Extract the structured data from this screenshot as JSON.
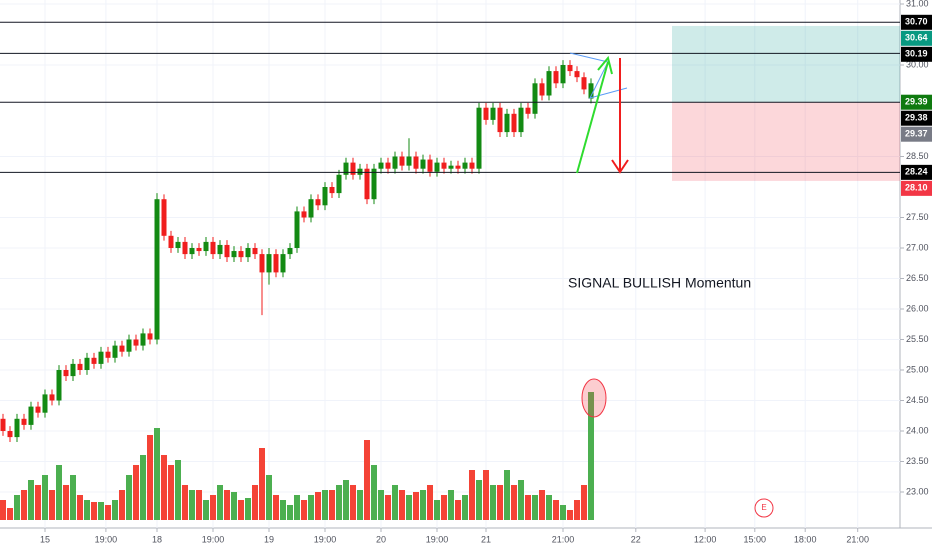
{
  "chart_data": {
    "type": "candlestick",
    "annotation": "SIGNAL BULLISH Momentun",
    "event_marker": "E",
    "up_color": "#138a13",
    "down_color": "#f01e1e",
    "vol_up_color": "#4caf50",
    "vol_down_color": "#f44336",
    "open": [
      24.2,
      24.0,
      23.9,
      24.2,
      24.1,
      24.4,
      24.3,
      24.6,
      24.5,
      25.0,
      24.9,
      25.1,
      25.0,
      25.2,
      25.1,
      25.3,
      25.2,
      25.4,
      25.3,
      25.5,
      25.4,
      25.6,
      25.5,
      27.8,
      27.2,
      27.0,
      27.1,
      26.9,
      27.0,
      26.95,
      27.1,
      26.9,
      27.05,
      26.85,
      26.95,
      26.85,
      27.0,
      26.9,
      26.6,
      26.9,
      26.6,
      26.9,
      27.0,
      27.6,
      27.5,
      27.8,
      27.7,
      28.0,
      27.9,
      28.2,
      28.4,
      28.2,
      28.3,
      27.8,
      28.3,
      28.4,
      28.3,
      28.5,
      28.35,
      28.5,
      28.3,
      28.45,
      28.25,
      28.4,
      28.3,
      28.35,
      28.3,
      28.4,
      28.3,
      29.3,
      29.1,
      29.3,
      28.9,
      29.2,
      28.9,
      29.3,
      29.2,
      29.7,
      29.5,
      29.9,
      29.7,
      30.0,
      29.9,
      29.8,
      29.45
    ],
    "high": [
      24.28,
      24.08,
      24.28,
      24.28,
      24.48,
      24.48,
      24.68,
      24.68,
      25.08,
      25.08,
      25.18,
      25.18,
      25.28,
      25.28,
      25.38,
      25.38,
      25.48,
      25.48,
      25.58,
      25.58,
      25.68,
      25.68,
      27.9,
      27.88,
      27.28,
      27.18,
      27.18,
      27.08,
      27.08,
      27.18,
      27.18,
      27.13,
      27.13,
      27.03,
      27.03,
      27.08,
      27.08,
      26.98,
      27.0,
      26.98,
      26.98,
      27.08,
      27.68,
      27.68,
      27.88,
      27.88,
      28.08,
      28.08,
      28.28,
      28.48,
      28.48,
      28.38,
      28.38,
      28.38,
      28.48,
      28.48,
      28.58,
      28.58,
      28.8,
      28.58,
      28.53,
      28.53,
      28.48,
      28.48,
      28.43,
      28.43,
      28.48,
      28.48,
      29.38,
      29.38,
      29.38,
      29.38,
      29.28,
      29.28,
      29.38,
      29.38,
      29.78,
      29.78,
      29.98,
      29.98,
      30.08,
      30.08,
      29.98,
      29.88,
      29.78
    ],
    "low": [
      23.92,
      23.82,
      23.82,
      24.02,
      24.02,
      24.22,
      24.22,
      24.42,
      24.42,
      24.82,
      24.82,
      24.92,
      24.92,
      25.02,
      25.02,
      25.12,
      25.12,
      25.22,
      25.22,
      25.32,
      25.32,
      25.42,
      25.42,
      27.12,
      26.92,
      26.92,
      26.82,
      26.82,
      26.87,
      26.87,
      26.82,
      26.82,
      26.77,
      26.77,
      26.77,
      26.77,
      26.82,
      25.9,
      26.4,
      26.52,
      26.52,
      26.82,
      26.92,
      27.42,
      27.42,
      27.62,
      27.62,
      27.82,
      27.82,
      28.12,
      28.12,
      28.12,
      27.72,
      27.72,
      28.22,
      28.22,
      28.22,
      28.27,
      28.27,
      28.22,
      28.22,
      28.17,
      28.17,
      28.22,
      28.22,
      28.22,
      28.22,
      28.22,
      28.22,
      29.02,
      29.02,
      28.82,
      28.82,
      28.82,
      28.82,
      29.12,
      29.12,
      29.42,
      29.42,
      29.62,
      29.62,
      29.82,
      29.72,
      29.52,
      29.37
    ],
    "close": [
      24.0,
      23.9,
      24.2,
      24.1,
      24.4,
      24.3,
      24.6,
      24.5,
      25.0,
      24.9,
      25.1,
      25.0,
      25.2,
      25.1,
      25.3,
      25.2,
      25.4,
      25.3,
      25.5,
      25.4,
      25.6,
      25.5,
      27.8,
      27.2,
      27.0,
      27.1,
      26.9,
      27.0,
      26.95,
      27.1,
      26.9,
      27.05,
      26.85,
      26.95,
      26.85,
      27.0,
      26.9,
      26.6,
      26.9,
      26.6,
      26.9,
      27.0,
      27.6,
      27.5,
      27.8,
      27.7,
      28.0,
      27.9,
      28.2,
      28.4,
      28.2,
      28.3,
      27.8,
      28.3,
      28.4,
      28.3,
      28.5,
      28.35,
      28.5,
      28.3,
      28.45,
      28.25,
      28.4,
      28.3,
      28.35,
      28.3,
      28.4,
      28.3,
      29.3,
      29.1,
      29.3,
      28.9,
      29.2,
      28.9,
      29.3,
      29.2,
      29.7,
      29.5,
      29.9,
      29.7,
      30.0,
      29.9,
      29.8,
      29.6,
      29.7
    ],
    "volume": [
      20,
      12,
      25,
      30,
      40,
      35,
      45,
      30,
      55,
      35,
      45,
      25,
      20,
      18,
      18,
      15,
      20,
      30,
      45,
      55,
      65,
      85,
      92,
      65,
      55,
      60,
      35,
      30,
      30,
      20,
      25,
      35,
      30,
      28,
      20,
      22,
      35,
      72,
      45,
      25,
      20,
      15,
      25,
      20,
      25,
      28,
      30,
      30,
      35,
      40,
      35,
      30,
      80,
      55,
      30,
      25,
      35,
      30,
      25,
      28,
      30,
      35,
      20,
      25,
      30,
      20,
      25,
      50,
      40,
      50,
      35,
      35,
      50,
      35,
      40,
      25,
      25,
      30,
      25,
      20,
      15,
      10,
      20,
      35,
      128
    ],
    "xlim": [
      0,
      128
    ],
    "xticks": [
      {
        "value": 6,
        "label": "15"
      },
      {
        "value": 14.7,
        "label": "19:00"
      },
      {
        "value": 22,
        "label": "18"
      },
      {
        "value": 30,
        "label": "19:00"
      },
      {
        "value": 38,
        "label": "19"
      },
      {
        "value": 46,
        "label": "19:00"
      },
      {
        "value": 54,
        "label": "20"
      },
      {
        "value": 62,
        "label": "19:00"
      },
      {
        "value": 69,
        "label": "21"
      },
      {
        "value": 80,
        "label": "21:00"
      },
      {
        "value": 90.4,
        "label": "22"
      },
      {
        "value": 100.3,
        "label": "12:00"
      },
      {
        "value": 107.4,
        "label": "15:00"
      },
      {
        "value": 114.6,
        "label": "18:00"
      },
      {
        "value": 122.1,
        "label": "21:00"
      }
    ],
    "ylim": [
      23,
      31
    ],
    "yticks": [
      {
        "value": 31,
        "label": "31.00"
      },
      {
        "value": 30,
        "label": "30.00"
      },
      {
        "value": 28.5,
        "label": "28.50"
      },
      {
        "value": 27.5,
        "label": "27.50"
      },
      {
        "value": 27,
        "label": "27.00"
      },
      {
        "value": 26.5,
        "label": "26.50"
      },
      {
        "value": 26,
        "label": "26.00"
      },
      {
        "value": 25.5,
        "label": "25.50"
      },
      {
        "value": 25,
        "label": "25.00"
      },
      {
        "value": 24.5,
        "label": "24.50"
      },
      {
        "value": 24,
        "label": "24.00"
      },
      {
        "value": 23.5,
        "label": "23.50"
      },
      {
        "value": 23,
        "label": "23.00"
      }
    ],
    "levels": [
      30.7,
      30.19,
      29.39,
      28.24
    ],
    "position": {
      "target": 30.64,
      "entry": 29.39,
      "stop": 28.1
    },
    "price_tags": [
      {
        "value": 30.7,
        "label": "30.70",
        "color": "#000000"
      },
      {
        "value": 30.64,
        "label": "30.64",
        "color": "#089981"
      },
      {
        "value": 30.19,
        "label": "30.19",
        "color": "#000000"
      },
      {
        "value": 29.39,
        "label": "29.39",
        "color": "#0f7a0f"
      },
      {
        "value": 29.38,
        "label": "29.38",
        "color": "#000000"
      },
      {
        "value": 29.37,
        "label": "29.37",
        "color": "#787b86"
      },
      {
        "value": 28.24,
        "label": "28.24",
        "color": "#000000"
      },
      {
        "value": 28.1,
        "label": "28.10",
        "color": "#f23645"
      }
    ]
  }
}
